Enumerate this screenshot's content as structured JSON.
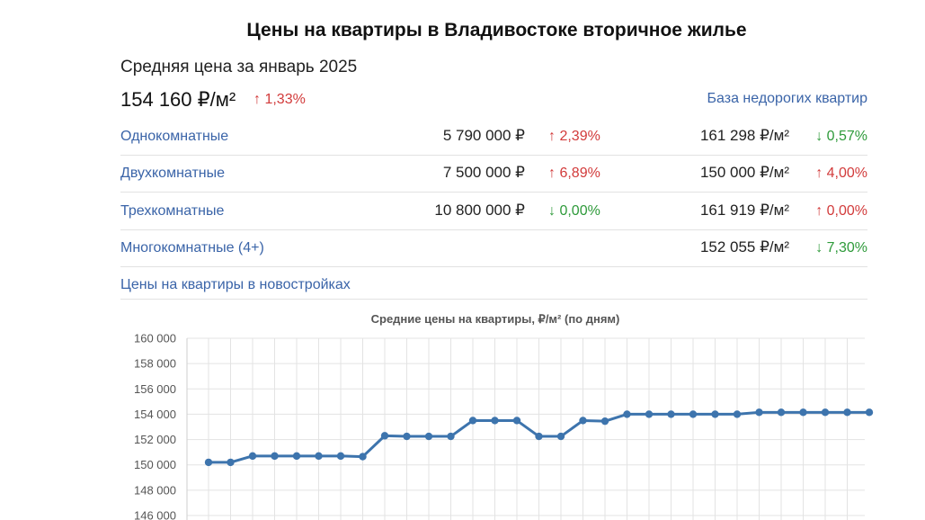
{
  "header": {
    "title": "Цены на квартиры в Владивостоке вторичное жилье",
    "subtitle": "Средняя цена за январь 2025",
    "avg_price": "154 160 ₽/м²",
    "avg_change": "↑ 1,33%",
    "cheap_link": "База недорогих квартир"
  },
  "rows": [
    {
      "name": "Однокомнатные",
      "price": "5 790 000 ₽",
      "price_change": "↑ 2,39%",
      "price_dir": "up",
      "m2": "161 298 ₽/м²",
      "m2_change": "↓ 0,57%",
      "m2_dir": "down"
    },
    {
      "name": "Двухкомнатные",
      "price": "7 500 000 ₽",
      "price_change": "↑ 6,89%",
      "price_dir": "up",
      "m2": "150 000 ₽/м²",
      "m2_change": "↑ 4,00%",
      "m2_dir": "up"
    },
    {
      "name": "Трехкомнатные",
      "price": "10 800 000 ₽",
      "price_change": "↓ 0,00%",
      "price_dir": "down",
      "m2": "161 919 ₽/м²",
      "m2_change": "↑ 0,00%",
      "m2_dir": "up"
    },
    {
      "name": "Многокомнатные (4+)",
      "price": "",
      "price_change": "",
      "price_dir": "",
      "m2": "152 055 ₽/м²",
      "m2_change": "↓ 7,30%",
      "m2_dir": "down"
    }
  ],
  "new_buildings_link": "Цены на квартиры в новостройках",
  "colors": {
    "line": "#3d74ad",
    "up": "#d23b3b",
    "down": "#2e9a3a",
    "link": "#3a64a8",
    "grid": "#e3e3e3"
  },
  "chart_data": {
    "type": "line",
    "title": "Средние цены на квартиры, ₽/м² (по дням)",
    "ylim": [
      146000,
      160000
    ],
    "yticks": [
      "160 000",
      "158 000",
      "156 000",
      "154 000",
      "152 000",
      "150 000",
      "148 000",
      "146 000"
    ],
    "ytick_values": [
      160000,
      158000,
      156000,
      154000,
      152000,
      150000,
      148000,
      146000
    ],
    "grid": true,
    "x_count": 31,
    "series": [
      {
        "values": [
          150200,
          150200,
          150700,
          150700,
          150700,
          150700,
          150700,
          150650,
          152300,
          152250,
          152250,
          152250,
          153500,
          153500,
          153500,
          152250,
          152250,
          153500,
          153450,
          154000,
          154000,
          154000,
          154000,
          154000,
          154000,
          154150,
          154150,
          154150,
          154150,
          154150,
          154150
        ]
      }
    ]
  }
}
